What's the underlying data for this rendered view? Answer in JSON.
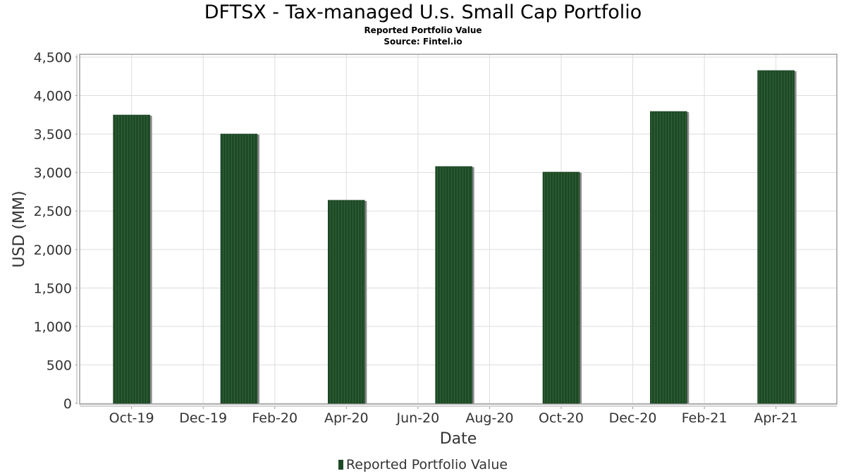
{
  "chart_data": {
    "type": "bar",
    "title": "DFTSX - Tax-managed U.s. Small Cap Portfolio",
    "subtitle": "Reported Portfolio Value",
    "source": "Source: Fintel.io",
    "xlabel": "Date",
    "ylabel": "USD (MM)",
    "ylim": [
      0,
      4500
    ],
    "yticks": [
      0,
      500,
      1000,
      1500,
      2000,
      2500,
      3000,
      3500,
      4000,
      4500
    ],
    "ytick_labels": [
      "0",
      "500",
      "1,000",
      "1,500",
      "2,000",
      "2,500",
      "3,000",
      "3,500",
      "4,000",
      "4,500"
    ],
    "xtick_labels": [
      "Oct-19",
      "Dec-19",
      "Feb-20",
      "Apr-20",
      "Jun-20",
      "Aug-20",
      "Oct-20",
      "Dec-20",
      "Feb-21",
      "Apr-21"
    ],
    "x_months_index_note": "months since Oct-19",
    "xticks_month_index": [
      0,
      2,
      4,
      6,
      8,
      10,
      12,
      14,
      16,
      18
    ],
    "xlim_month_index": [
      -1.45,
      19.7
    ],
    "grid": true,
    "legend_position": "bottom",
    "series": [
      {
        "name": "Reported Portfolio Value",
        "color": "#1e4a26",
        "categories": [
          "Oct-19",
          "Jan-20",
          "Apr-20",
          "Jul-20",
          "Oct-20",
          "Jan-21",
          "Apr-21"
        ],
        "month_index": [
          0,
          3,
          6,
          9,
          12,
          15,
          18
        ],
        "values": [
          3748,
          3501,
          2640,
          3079,
          3006,
          3794,
          4326
        ]
      }
    ]
  }
}
